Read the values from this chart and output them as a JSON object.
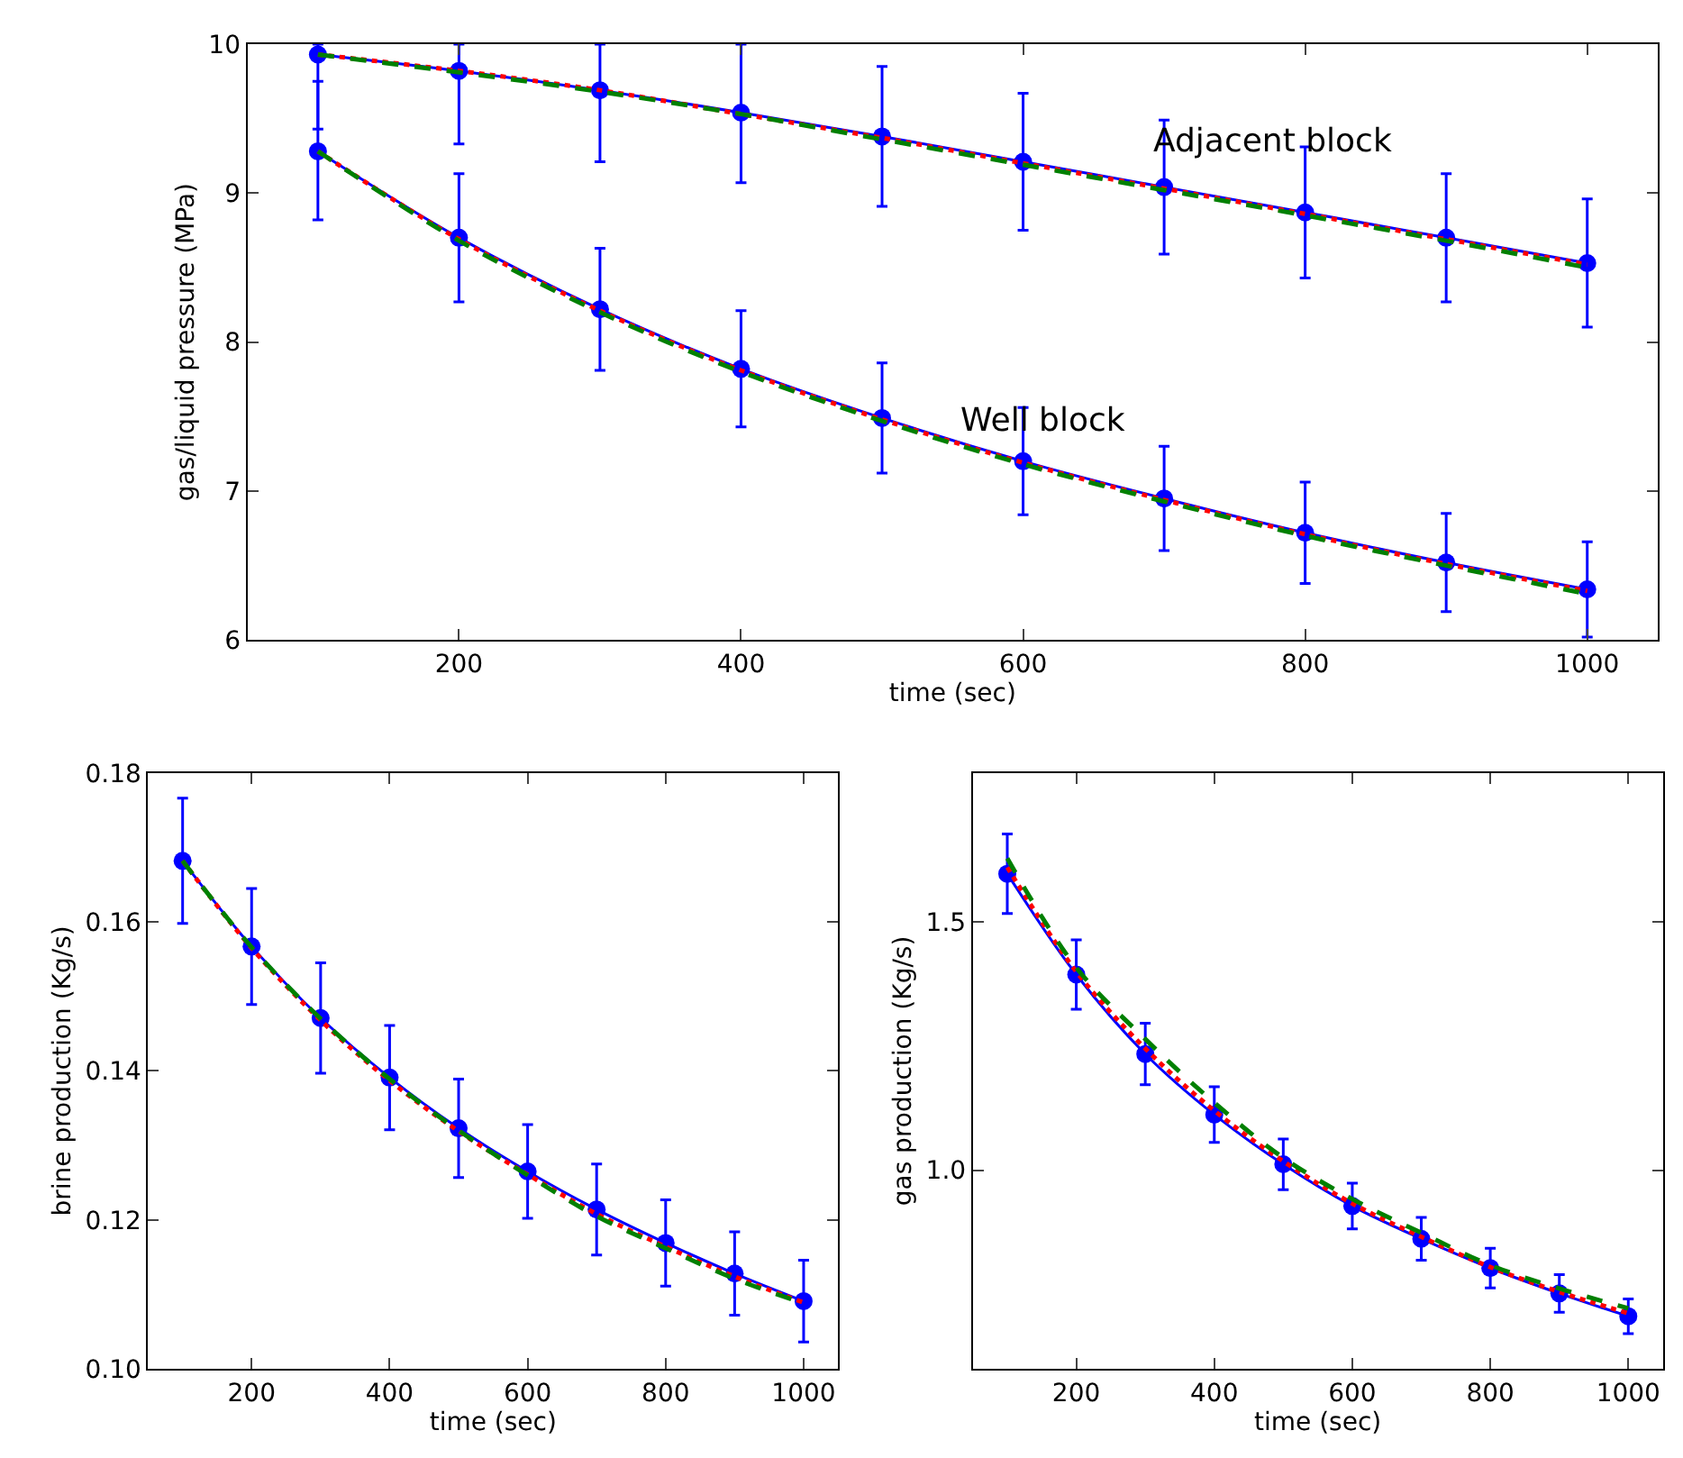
{
  "chart_data": [
    {
      "type": "line",
      "xlabel": "time (sec)",
      "ylabel": "gas/liquid pressure (MPa)",
      "x": [
        100,
        200,
        300,
        400,
        500,
        600,
        700,
        800,
        900,
        1000
      ],
      "xlim": [
        50,
        1050
      ],
      "xticks": [
        200,
        400,
        600,
        800,
        1000
      ],
      "ylim": [
        6,
        10
      ],
      "yticks": [
        6,
        7,
        8,
        9,
        10
      ],
      "annotations": [
        "Adjacent block",
        "Well block"
      ],
      "series": [
        {
          "color": "#0000ff",
          "marker": "circle",
          "line_style": "solid",
          "values": [
            9.93,
            9.82,
            9.69,
            9.54,
            9.38,
            9.21,
            9.04,
            8.87,
            8.7,
            8.53
          ],
          "errors": [
            [
              9.43,
              10
            ],
            [
              9.33,
              10
            ],
            [
              9.21,
              10
            ],
            [
              9.07,
              10
            ],
            [
              8.91,
              9.85
            ],
            [
              8.75,
              9.67
            ],
            [
              8.59,
              9.49
            ],
            [
              8.43,
              9.31
            ],
            [
              8.27,
              9.13
            ],
            [
              8.1,
              8.96
            ]
          ]
        },
        {
          "color": "#ff0000",
          "marker": "none",
          "line_style": "dotted",
          "values": [
            9.93,
            9.82,
            9.69,
            9.53,
            9.37,
            9.2,
            9.03,
            8.86,
            8.69,
            8.52
          ]
        },
        {
          "color": "#008000",
          "marker": "none",
          "line_style": "dashed",
          "values": [
            9.93,
            9.81,
            9.68,
            9.53,
            9.36,
            9.19,
            9.02,
            8.85,
            8.68,
            8.5
          ]
        },
        {
          "color": "#0000ff",
          "marker": "circle",
          "line_style": "solid",
          "values": [
            9.28,
            8.7,
            8.22,
            7.82,
            7.49,
            7.2,
            6.95,
            6.72,
            6.52,
            6.34
          ],
          "errors": [
            [
              8.82,
              9.75
            ],
            [
              8.27,
              9.13
            ],
            [
              7.81,
              8.63
            ],
            [
              7.43,
              8.21
            ],
            [
              7.12,
              7.86
            ],
            [
              6.84,
              7.56
            ],
            [
              6.6,
              7.3
            ],
            [
              6.38,
              7.06
            ],
            [
              6.19,
              6.85
            ],
            [
              6.02,
              6.66
            ]
          ]
        },
        {
          "color": "#ff0000",
          "marker": "none",
          "line_style": "dotted",
          "values": [
            9.28,
            8.69,
            8.21,
            7.81,
            7.48,
            7.19,
            6.94,
            6.71,
            6.51,
            6.33
          ]
        },
        {
          "color": "#008000",
          "marker": "none",
          "line_style": "dashed",
          "values": [
            9.28,
            8.68,
            8.2,
            7.8,
            7.47,
            7.18,
            6.93,
            6.7,
            6.5,
            6.31
          ]
        }
      ]
    },
    {
      "type": "line",
      "xlabel": "time (sec)",
      "ylabel": "brine production (Kg/s)",
      "x": [
        100,
        200,
        300,
        400,
        500,
        600,
        700,
        800,
        900,
        1000
      ],
      "xlim": [
        50,
        1050
      ],
      "xticks": [
        200,
        400,
        600,
        800,
        1000
      ],
      "ylim": [
        0.1,
        0.18
      ],
      "yticks": [
        {
          "value": 0.1,
          "label": "0.10"
        },
        {
          "value": 0.12,
          "label": "0.12"
        },
        {
          "value": 0.14,
          "label": "0.14"
        },
        {
          "value": 0.16,
          "label": "0.16"
        },
        {
          "value": 0.18,
          "label": "0.18"
        }
      ],
      "series": [
        {
          "color": "#0000ff",
          "marker": "circle",
          "line_style": "solid",
          "values": [
            0.1682,
            0.1567,
            0.1471,
            0.1391,
            0.1323,
            0.1265,
            0.1214,
            0.1169,
            0.1128,
            0.1091
          ],
          "errors": [
            [
              0.1598,
              0.1766
            ],
            [
              0.1489,
              0.1645
            ],
            [
              0.1397,
              0.1545
            ],
            [
              0.1321,
              0.1461
            ],
            [
              0.1257,
              0.1389
            ],
            [
              0.1202,
              0.1328
            ],
            [
              0.1153,
              0.1275
            ],
            [
              0.1111,
              0.1227
            ],
            [
              0.1072,
              0.1184
            ],
            [
              0.1036,
              0.1146
            ]
          ]
        },
        {
          "color": "#ff0000",
          "marker": "none",
          "line_style": "dotted",
          "values": [
            0.1682,
            0.1565,
            0.1468,
            0.1387,
            0.1319,
            0.1261,
            0.1208,
            0.1164,
            0.1124,
            0.1089
          ]
        },
        {
          "color": "#008000",
          "marker": "none",
          "line_style": "dashed",
          "values": [
            0.1682,
            0.1566,
            0.147,
            0.1389,
            0.132,
            0.126,
            0.1205,
            0.1162,
            0.1121,
            0.1088
          ]
        }
      ]
    },
    {
      "type": "line",
      "xlabel": "time (sec)",
      "ylabel": "gas production (Kg/s)",
      "x": [
        100,
        200,
        300,
        400,
        500,
        600,
        700,
        800,
        900,
        1000
      ],
      "xlim": [
        50,
        1050
      ],
      "xticks": [
        200,
        400,
        600,
        800,
        1000
      ],
      "ylim": [
        0.6,
        1.8
      ],
      "yticks": [
        {
          "value": 1.0,
          "label": "1.0"
        },
        {
          "value": 1.5,
          "label": "1.5"
        }
      ],
      "series": [
        {
          "color": "#0000ff",
          "marker": "circle",
          "line_style": "solid",
          "values": [
            1.597,
            1.394,
            1.234,
            1.112,
            1.012,
            0.928,
            0.862,
            0.803,
            0.752,
            0.706
          ],
          "errors": [
            [
              1.517,
              1.677
            ],
            [
              1.324,
              1.464
            ],
            [
              1.172,
              1.296
            ],
            [
              1.056,
              1.168
            ],
            [
              0.961,
              1.063
            ],
            [
              0.882,
              0.974
            ],
            [
              0.819,
              0.905
            ],
            [
              0.763,
              0.843
            ],
            [
              0.714,
              0.79
            ],
            [
              0.671,
              0.741
            ]
          ]
        },
        {
          "color": "#ff0000",
          "marker": "none",
          "line_style": "dotted",
          "values": [
            1.61,
            1.4,
            1.245,
            1.12,
            1.018,
            0.933,
            0.866,
            0.805,
            0.755,
            0.712
          ]
        },
        {
          "color": "#008000",
          "marker": "none",
          "line_style": "dashed",
          "values": [
            1.628,
            1.408,
            1.264,
            1.136,
            1.025,
            0.942,
            0.874,
            0.809,
            0.762,
            0.722
          ]
        }
      ]
    }
  ]
}
